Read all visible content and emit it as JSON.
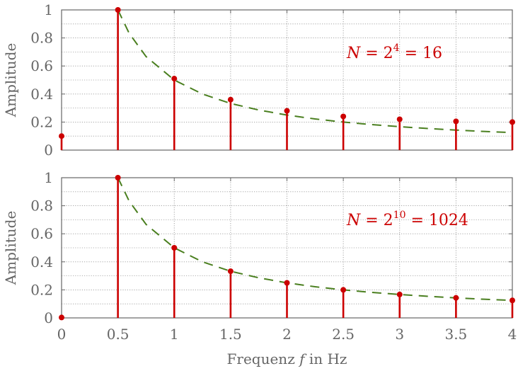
{
  "chart_data": [
    {
      "type": "stem",
      "annotation": {
        "prefix": "N = 2",
        "exponent": "4",
        "suffix": " = 16"
      },
      "ylabel": "Amplitude",
      "xlabel": "",
      "xlim": [
        0,
        4
      ],
      "ylim": [
        0,
        1
      ],
      "x_ticks": [
        "0",
        "0.5",
        "1",
        "1.5",
        "2",
        "2.5",
        "3",
        "3.5",
        "4"
      ],
      "y_ticks": [
        "0",
        "0.2",
        "0.4",
        "0.6",
        "0.8",
        "1"
      ],
      "show_x_ticklabels": false,
      "grid": true,
      "stems": {
        "x": [
          0,
          0.5,
          1,
          1.5,
          2,
          2.5,
          3,
          3.5,
          4
        ],
        "y": [
          0.1,
          1.0,
          0.51,
          0.36,
          0.28,
          0.24,
          0.22,
          0.205,
          0.2
        ],
        "color": "#cc0000"
      },
      "envelope": {
        "x": [
          0.5,
          0.6,
          0.75,
          1.0,
          1.25,
          1.5,
          1.75,
          2.0,
          2.25,
          2.5,
          2.75,
          3.0,
          3.25,
          3.5,
          3.75,
          4.0
        ],
        "y": [
          1.0,
          0.833,
          0.667,
          0.5,
          0.4,
          0.333,
          0.286,
          0.25,
          0.222,
          0.2,
          0.182,
          0.167,
          0.154,
          0.143,
          0.133,
          0.125
        ],
        "color": "#4a7f1f",
        "style": "dashed"
      }
    },
    {
      "type": "stem",
      "annotation": {
        "prefix": "N = 2",
        "exponent": "10",
        "suffix": " = 1024"
      },
      "ylabel": "Amplitude",
      "xlabel": "Frequenz f in Hz",
      "xlim": [
        0,
        4
      ],
      "ylim": [
        0,
        1
      ],
      "x_ticks": [
        "0",
        "0.5",
        "1",
        "1.5",
        "2",
        "2.5",
        "3",
        "3.5",
        "4"
      ],
      "y_ticks": [
        "0",
        "0.2",
        "0.4",
        "0.6",
        "0.8",
        "1"
      ],
      "show_x_ticklabels": true,
      "grid": true,
      "stems": {
        "x": [
          0,
          0.5,
          1,
          1.5,
          2,
          2.5,
          3,
          3.5,
          4
        ],
        "y": [
          0.003,
          1.0,
          0.5,
          0.333,
          0.25,
          0.2,
          0.167,
          0.143,
          0.125
        ],
        "color": "#cc0000"
      },
      "envelope": {
        "x": [
          0.5,
          0.6,
          0.75,
          1.0,
          1.25,
          1.5,
          1.75,
          2.0,
          2.25,
          2.5,
          2.75,
          3.0,
          3.25,
          3.5,
          3.75,
          4.0
        ],
        "y": [
          1.0,
          0.833,
          0.667,
          0.5,
          0.4,
          0.333,
          0.286,
          0.25,
          0.222,
          0.2,
          0.182,
          0.167,
          0.154,
          0.143,
          0.133,
          0.125
        ],
        "color": "#4a7f1f",
        "style": "dashed"
      }
    }
  ]
}
